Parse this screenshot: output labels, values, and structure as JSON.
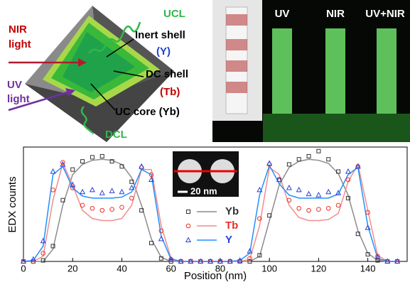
{
  "diagram": {
    "labels": {
      "nir": "NIR",
      "nir_light": "light",
      "uv": "UV",
      "uv_light": "light",
      "ucl": "UCL",
      "inert": "Inert shell",
      "inert_el": "(Y)",
      "dc": "DC shell",
      "dc_el": "(Tb)",
      "core": "UC core (Yb)",
      "dcl": "DCL"
    }
  },
  "photo": {
    "labels": [
      "UV",
      "NIR",
      "UV+NIR"
    ]
  },
  "chart_data": {
    "type": "scatter-line",
    "xlabel": "Position (nm)",
    "ylabel": "EDX counts",
    "inset_scale": "20 nm",
    "xlim": [
      0,
      156
    ],
    "xticks": [
      0,
      20,
      40,
      60,
      80,
      100,
      120,
      140
    ],
    "ylim": [
      0,
      1.12
    ],
    "legend": "center",
    "x": [
      0,
      4,
      8,
      12,
      16,
      20,
      24,
      28,
      32,
      36,
      40,
      44,
      48,
      52,
      56,
      60,
      64,
      68,
      72,
      76,
      80,
      84,
      88,
      92,
      96,
      100,
      104,
      108,
      112,
      116,
      120,
      124,
      128,
      132,
      136,
      140,
      144,
      148,
      152
    ],
    "series": [
      {
        "name": "Yb",
        "color": "#333333",
        "line_color": "#8c8c8c",
        "marker": "square",
        "values": [
          0,
          0,
          0.01,
          0.15,
          0.6,
          0.9,
          0.98,
          1.02,
          1.03,
          0.98,
          0.93,
          0.78,
          0.5,
          0.18,
          0.03,
          0,
          0,
          0,
          0,
          0,
          0,
          0,
          0,
          0,
          0.06,
          0.45,
          0.8,
          0.95,
          1.0,
          1.03,
          1.08,
          1.0,
          0.88,
          0.62,
          0.27,
          0.07,
          0.01,
          0,
          0
        ],
        "fit": [
          0,
          0,
          0,
          0.12,
          0.55,
          0.85,
          0.95,
          0.99,
          1.0,
          0.99,
          0.95,
          0.82,
          0.55,
          0.22,
          0.04,
          0,
          0,
          0,
          0,
          0,
          0,
          0,
          0,
          0,
          0.05,
          0.4,
          0.75,
          0.92,
          0.98,
          1.0,
          0.99,
          0.96,
          0.86,
          0.65,
          0.3,
          0.08,
          0.01,
          0,
          0
        ]
      },
      {
        "name": "Tb",
        "color": "#e8302a",
        "line_color": "#f28c8c",
        "marker": "circle",
        "values": [
          0,
          0,
          0.08,
          0.7,
          0.97,
          0.72,
          0.55,
          0.52,
          0.5,
          0.51,
          0.53,
          0.62,
          0.92,
          0.85,
          0.3,
          0.02,
          0,
          0,
          0,
          0,
          0,
          0,
          0,
          0.03,
          0.42,
          0.95,
          0.8,
          0.6,
          0.52,
          0.5,
          0.51,
          0.52,
          0.55,
          0.8,
          0.93,
          0.48,
          0.05,
          0,
          0
        ],
        "fit": [
          0,
          0,
          0.05,
          0.6,
          0.96,
          0.75,
          0.5,
          0.42,
          0.4,
          0.4,
          0.42,
          0.55,
          0.9,
          0.9,
          0.35,
          0.03,
          0,
          0,
          0,
          0,
          0,
          0,
          0,
          0.02,
          0.35,
          0.92,
          0.85,
          0.55,
          0.43,
          0.4,
          0.4,
          0.41,
          0.47,
          0.78,
          0.95,
          0.5,
          0.06,
          0,
          0
        ]
      },
      {
        "name": "Y",
        "color": "#2a3fd8",
        "line_color": "#1e90ff",
        "marker": "triangle",
        "values": [
          0,
          0.02,
          0.2,
          0.88,
          0.95,
          0.75,
          0.68,
          0.7,
          0.67,
          0.69,
          0.68,
          0.72,
          0.93,
          0.8,
          0.22,
          0.02,
          0,
          0,
          0,
          0,
          0,
          0,
          0.01,
          0.1,
          0.7,
          0.96,
          0.8,
          0.72,
          0.7,
          0.66,
          0.65,
          0.68,
          0.67,
          0.88,
          0.93,
          0.33,
          0.04,
          0,
          0
        ],
        "fit": [
          0,
          0.01,
          0.15,
          0.85,
          0.93,
          0.72,
          0.64,
          0.62,
          0.62,
          0.62,
          0.63,
          0.68,
          0.9,
          0.85,
          0.25,
          0.02,
          0,
          0,
          0,
          0,
          0,
          0,
          0.01,
          0.08,
          0.65,
          0.94,
          0.76,
          0.65,
          0.62,
          0.62,
          0.62,
          0.62,
          0.66,
          0.85,
          0.92,
          0.35,
          0.03,
          0,
          0
        ]
      }
    ]
  }
}
